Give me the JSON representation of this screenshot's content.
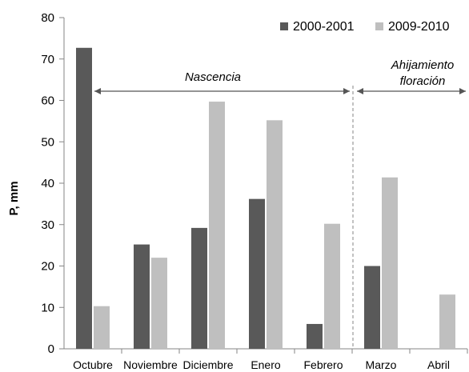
{
  "chart_data": {
    "type": "bar",
    "title": "",
    "xlabel": "",
    "ylabel": "P, mm",
    "ylim": [
      0,
      80
    ],
    "yticks": [
      0,
      10,
      20,
      30,
      40,
      50,
      60,
      70,
      80
    ],
    "categories": [
      "Octubre",
      "Noviembre",
      "Diciembre",
      "Enero",
      "Febrero",
      "Marzo",
      "Abril"
    ],
    "series": [
      {
        "name": "2000-2001",
        "color": "#595959",
        "values": [
          72.7,
          25.2,
          29.2,
          36.2,
          6.0,
          20.0,
          0
        ]
      },
      {
        "name": "2009-2010",
        "color": "#bfbfbf",
        "values": [
          10.3,
          22.0,
          59.7,
          55.2,
          30.2,
          41.4,
          13.1
        ]
      }
    ],
    "legend": "top-right",
    "grid": false,
    "annotations": {
      "nascencia": "Nascencia",
      "ahijamiento_line1": "Ahijamiento",
      "ahijamiento_line2": "floración"
    }
  }
}
